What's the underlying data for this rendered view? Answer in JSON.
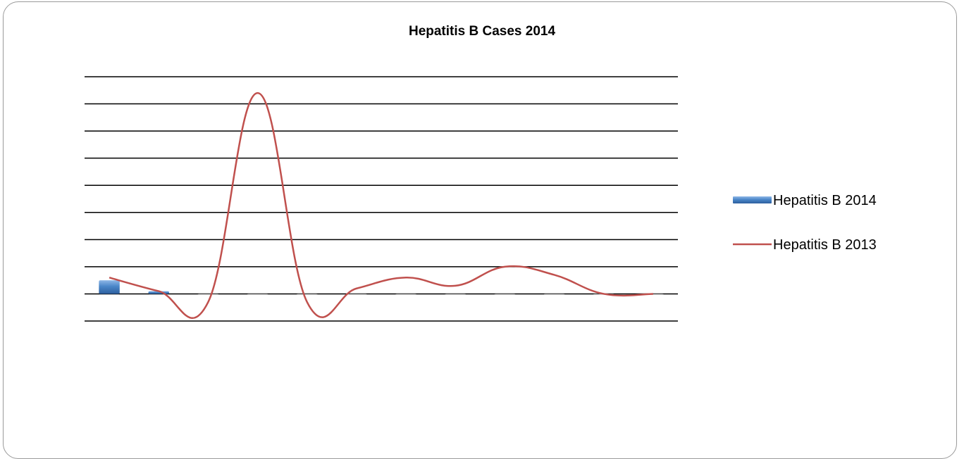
{
  "chart_data": {
    "type": "bar",
    "title": "Hepatitis B Cases 2014",
    "xlabel": "",
    "ylabel": "",
    "categories": [
      "",
      "",
      "",
      "",
      "",
      "",
      "",
      "",
      "",
      "",
      "",
      ""
    ],
    "ylim": [
      -1,
      8
    ],
    "grid": true,
    "legend_position": "right",
    "series": [
      {
        "name": "Hepatitis B 2014",
        "kind": "bar",
        "color": "#4a86c8",
        "values": [
          0.5,
          0.1,
          0,
          0,
          0,
          0,
          0,
          0,
          0,
          0,
          0,
          0
        ]
      },
      {
        "name": "Hepatitis B 2013",
        "kind": "line",
        "color": "#c0504d",
        "values": [
          0.6,
          0.1,
          -0.3,
          7.4,
          -0.3,
          0.2,
          0.6,
          0.3,
          1.0,
          0.7,
          0.0,
          0.0
        ]
      }
    ]
  }
}
